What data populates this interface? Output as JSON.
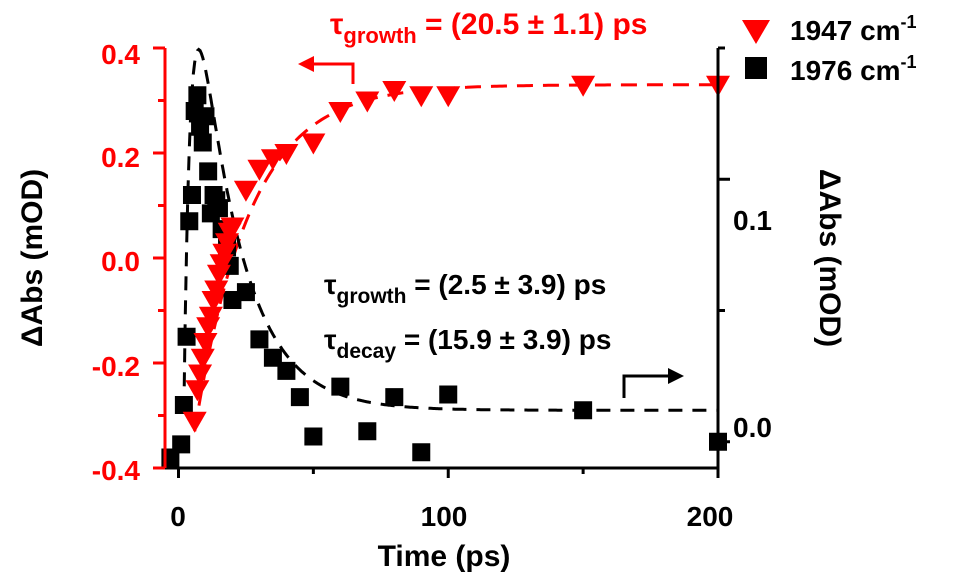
{
  "chart_data": {
    "type": "scatter",
    "xlabel": "Time (ps)",
    "ylabel_left": "ΔAbs (mOD)",
    "ylabel_right": "ΔAbs (mOD)",
    "xlim": [
      -5,
      200
    ],
    "ylim_left": [
      -0.4,
      0.4
    ],
    "ylim_right": [
      -0.01,
      0.15
    ],
    "x_ticks": [
      0,
      100,
      200
    ],
    "y_ticks_left": [
      "0.4",
      "0.2",
      "0.0",
      "-0.2",
      "-0.4"
    ],
    "y_ticks_right": [
      "0.1",
      "0.0"
    ],
    "left_axis_color": "#ff0000",
    "right_axis_color": "#000000",
    "legend_position": "top-right",
    "series": [
      {
        "name": "1947 cm",
        "name_superscript": "-1",
        "axis": "left",
        "marker": "triangle-down",
        "color": "#ff0000",
        "x": [
          6,
          7,
          8,
          9,
          10,
          11,
          12,
          13,
          14,
          15,
          16,
          17,
          18,
          19,
          20,
          25,
          30,
          35,
          40,
          50,
          60,
          70,
          80,
          90,
          100,
          150,
          200
        ],
        "y": [
          -0.31,
          -0.25,
          -0.22,
          -0.19,
          -0.16,
          -0.13,
          -0.11,
          -0.08,
          -0.06,
          -0.03,
          -0.01,
          0.01,
          0.03,
          0.05,
          0.06,
          0.13,
          0.17,
          0.19,
          0.2,
          0.22,
          0.28,
          0.3,
          0.32,
          0.31,
          0.31,
          0.33,
          0.33
        ]
      },
      {
        "name": "1976 cm",
        "name_superscript": "-1",
        "axis": "right",
        "marker": "square",
        "color": "#000000",
        "x": [
          -3,
          1,
          2,
          3,
          4,
          5,
          6,
          7,
          8,
          9,
          10,
          11,
          12,
          13,
          14,
          15,
          16,
          18,
          19,
          20,
          25,
          30,
          35,
          40,
          45,
          50,
          60,
          70,
          80,
          90,
          100,
          150,
          200
        ],
        "y": [
          -0.006,
          -0.001,
          0.014,
          0.04,
          0.084,
          0.094,
          0.126,
          0.132,
          0.12,
          0.114,
          0.124,
          0.103,
          0.087,
          0.094,
          0.092,
          0.089,
          0.081,
          0.074,
          0.067,
          0.054,
          0.057,
          0.039,
          0.032,
          0.027,
          0.017,
          0.002,
          0.021,
          0.004,
          0.017,
          -0.004,
          0.018,
          0.012,
          0.0
        ]
      }
    ],
    "fits": [
      {
        "series": "1947 cm",
        "axis": "left",
        "style": "dashed",
        "color": "#ff0000"
      },
      {
        "series": "1976 cm",
        "axis": "right",
        "style": "dashed",
        "color": "#000000"
      }
    ],
    "annotations": {
      "red_fit": {
        "tau": "τ",
        "subscript": "growth",
        "text": " = (20.5 ± 1.1) ps"
      },
      "black_growth": {
        "tau": "τ",
        "subscript": "growth",
        "text": " = (2.5 ± 3.9) ps"
      },
      "black_decay": {
        "tau": "τ",
        "subscript": "decay",
        "text": " = (15.9 ± 3.9) ps"
      }
    }
  }
}
